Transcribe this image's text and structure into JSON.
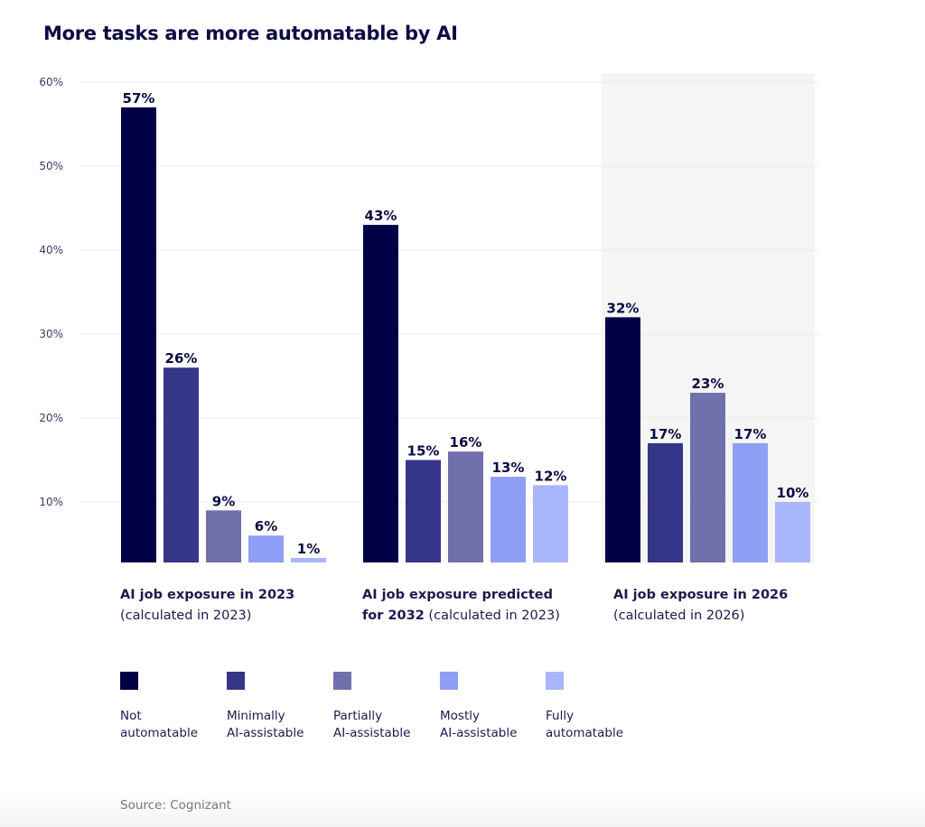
{
  "title": "More tasks are more automatable by AI",
  "source": "Source: Cognizant",
  "colors": {
    "not_automatable": "#000046",
    "minimally": "#35358a",
    "partially": "#7070ad",
    "mostly": "#8f9ff5",
    "fully": "#a9b6fb",
    "highlight_bg": "#f5f5f3",
    "grid": "#ececec"
  },
  "chart_data": {
    "type": "bar",
    "title": "More tasks are more automatable by AI",
    "xlabel": "",
    "ylabel": "",
    "ylim": [
      0,
      60
    ],
    "yticks": [
      "10%",
      "20%",
      "30%",
      "40%",
      "50%",
      "60%"
    ],
    "ytick_values": [
      10,
      20,
      30,
      40,
      50,
      60
    ],
    "grid": true,
    "highlighted_category": "AI job exposure in 2026 (calculated in 2026)",
    "categories": [
      {
        "bold": "AI job exposure in 2023",
        "normal": "(calculated in 2023)"
      },
      {
        "bold": "AI job exposure predicted for 2032",
        "normal": "(calculated in 2023)"
      },
      {
        "bold": "AI job exposure in 2026",
        "normal": "(calculated in 2026)"
      }
    ],
    "category_labels": {
      "c0_bold": "AI job exposure in 2023",
      "c0_normal": "(calculated in 2023)",
      "c1_bold_line1": "AI job exposure predicted",
      "c1_bold_line2": "for 2032",
      "c1_normal": " (calculated in 2023)",
      "c2_bold": "AI job exposure in 2026",
      "c2_normal": "(calculated in 2026)"
    },
    "series": [
      {
        "name": "Not automatable",
        "label_lines": [
          "Not",
          "automatable"
        ],
        "color": "#000046",
        "values": [
          57,
          43,
          32
        ]
      },
      {
        "name": "Minimally AI-assistable",
        "label_lines": [
          "Minimally",
          "AI-assistable"
        ],
        "color": "#35358a",
        "values": [
          26,
          15,
          17
        ]
      },
      {
        "name": "Partially AI-assistable",
        "label_lines": [
          "Partially",
          "AI-assistable"
        ],
        "color": "#7070ad",
        "values": [
          9,
          16,
          23
        ]
      },
      {
        "name": "Mostly AI-assistable",
        "label_lines": [
          "Mostly",
          "AI-assistable"
        ],
        "color": "#8f9ff5",
        "values": [
          6,
          13,
          17
        ]
      },
      {
        "name": "Fully automatable",
        "label_lines": [
          "Fully",
          "automatable"
        ],
        "color": "#a9b6fb",
        "values": [
          1,
          12,
          10
        ]
      }
    ],
    "value_suffix": "%",
    "legend_position": "bottom"
  }
}
